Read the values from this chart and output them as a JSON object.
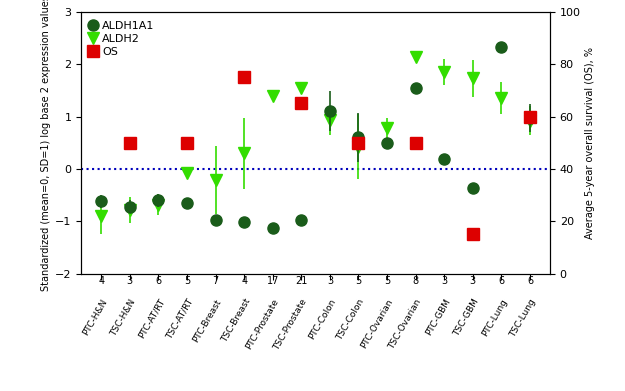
{
  "categories": [
    "PTC-H&N",
    "TSC-H&N",
    "PTC-AT/RT",
    "TSC-AT/RT",
    "PTC-Breast",
    "TSC-Breast",
    "PTC-Prostate",
    "TSC-Prostate",
    "PTC-Colon",
    "TSC-Colon",
    "PTC-Ovarian",
    "TSC-Ovarian",
    "PTC-GBM",
    "TSC-GBM",
    "PTC-Lung",
    "TSC-Lung"
  ],
  "n_values": [
    4,
    3,
    6,
    5,
    7,
    4,
    17,
    21,
    3,
    5,
    5,
    8,
    3,
    3,
    6,
    6
  ],
  "aldh1a1_values": [
    -0.62,
    -0.72,
    -0.6,
    -0.65,
    -0.97,
    -1.02,
    -1.12,
    -0.97,
    1.1,
    0.6,
    0.5,
    1.55,
    0.18,
    -0.37,
    2.32,
    0.97
  ],
  "aldh1a1_err_low": [
    0.12,
    0.12,
    0.12,
    0.08,
    0.06,
    0.07,
    0.0,
    0.0,
    0.38,
    0.46,
    0.08,
    0.05,
    0.07,
    0.05,
    0.0,
    0.27
  ],
  "aldh1a1_err_high": [
    0.12,
    0.12,
    0.12,
    0.08,
    0.06,
    0.07,
    0.0,
    0.0,
    0.38,
    0.46,
    0.08,
    0.05,
    0.07,
    0.05,
    0.0,
    0.27
  ],
  "aldh2_values": [
    -0.9,
    -0.78,
    -0.68,
    -0.07,
    -0.22,
    0.3,
    1.4,
    1.55,
    0.93,
    0.42,
    0.78,
    2.14,
    1.85,
    1.73,
    1.35,
    0.92
  ],
  "aldh2_err_low": [
    0.35,
    0.25,
    0.2,
    0.08,
    0.65,
    0.68,
    0.08,
    0.05,
    0.28,
    0.62,
    0.2,
    0.08,
    0.25,
    0.35,
    0.3,
    0.28
  ],
  "aldh2_err_high": [
    0.35,
    0.25,
    0.2,
    0.08,
    0.65,
    0.68,
    0.08,
    0.05,
    0.28,
    0.62,
    0.2,
    0.08,
    0.25,
    0.35,
    0.3,
    0.28
  ],
  "os_pct": [
    null,
    50,
    null,
    50,
    null,
    75,
    null,
    65,
    null,
    50,
    null,
    50,
    null,
    15,
    null,
    60
  ],
  "ylim": [
    -2.0,
    3.0
  ],
  "y2lim": [
    0,
    100
  ],
  "yticks": [
    -2,
    -1,
    0,
    1,
    2,
    3
  ],
  "y2ticks": [
    0,
    20,
    40,
    60,
    80,
    100
  ],
  "aldh1a1_color": "#1a5c1a",
  "aldh2_color": "#33dd00",
  "os_color": "#dd0000",
  "dotted_line_color": "#0000bb",
  "background_color": "#ffffff",
  "ylabel": "Standardized (mean=0, SD=1) log base 2 expression values",
  "y2label": "Average 5-year overall survival (OS), %",
  "legend_aldh1a1": "ALDH1A1",
  "legend_aldh2": "ALDH2",
  "legend_os": "OS"
}
